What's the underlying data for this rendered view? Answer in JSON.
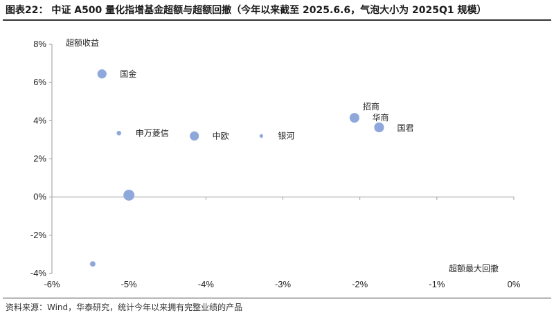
{
  "header": {
    "title": "图表22： 中证 A500 量化指增基金超额与超额回撤（今年以来截至 2025.6.6，气泡大小为 2025Q1 规模）"
  },
  "footer": {
    "source": "资料来源：Wind，华泰研究，统计今年以来拥有完整业绩的产品"
  },
  "chart_data": {
    "type": "scatter",
    "title": "",
    "xlabel": "超额最大回撤",
    "ylabel": "超额收益",
    "xlim": [
      -6,
      0
    ],
    "ylim": [
      -4,
      8
    ],
    "x_ticks": [
      "-6%",
      "-5%",
      "-4%",
      "-3%",
      "-2%",
      "-1%",
      "0%"
    ],
    "y_ticks": [
      "-4%",
      "-2%",
      "0%",
      "2%",
      "4%",
      "6%",
      "8%"
    ],
    "x_tick_values": [
      -6,
      -5,
      -4,
      -3,
      -2,
      -1,
      0
    ],
    "y_tick_values": [
      -4,
      -2,
      0,
      2,
      4,
      6,
      8
    ],
    "grid": false,
    "color": "#8fa8dc",
    "points": [
      {
        "label": "国金",
        "x": -5.35,
        "y": 6.45,
        "size": 3
      },
      {
        "label": "申万菱信",
        "x": -5.13,
        "y": 3.35,
        "size": 1.5
      },
      {
        "label": "中欧",
        "x": -4.15,
        "y": 3.2,
        "size": 3
      },
      {
        "label": "银河",
        "x": -3.28,
        "y": 3.2,
        "size": 1.2
      },
      {
        "label": "招商",
        "x": -2.07,
        "y": 4.15,
        "size": 3.2
      },
      {
        "label": "华商",
        "x": -1.75,
        "y": 3.65,
        "size": 3.2
      },
      {
        "label": "国君",
        "x": -1.75,
        "y": 3.65,
        "size": 3.2
      },
      {
        "label": "",
        "x": -5.0,
        "y": 0.1,
        "size": 3.6
      },
      {
        "label": "",
        "x": -5.47,
        "y": -3.5,
        "size": 1.8
      }
    ]
  }
}
